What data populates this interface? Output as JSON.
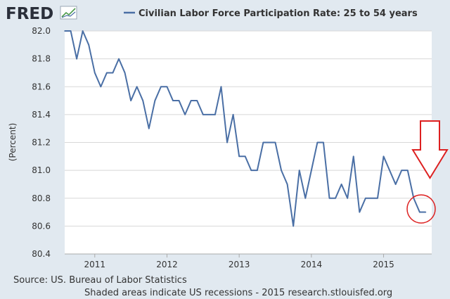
{
  "logo": {
    "text": "FRED"
  },
  "colors": {
    "series": "#4a6fa5",
    "annotation": "#dd2020",
    "plot_bg": "#ffffff",
    "page_bg": "#e1e9f0",
    "grid": "#d8d8d8"
  },
  "footer": {
    "source": "Source: US. Bureau of Labor Statistics",
    "note": "Shaded areas indicate US recessions - 2015 research.stlouisfed.org"
  },
  "chart_data": {
    "type": "line",
    "title": "",
    "ylabel": "(Percent)",
    "xlabel": "",
    "ylim": [
      80.4,
      82.0
    ],
    "y_ticks": [
      "82.0",
      "81.8",
      "81.6",
      "81.4",
      "81.2",
      "81.0",
      "80.8",
      "80.6",
      "80.4"
    ],
    "x_ticks": [
      "2011",
      "2012",
      "2013",
      "2014",
      "2015"
    ],
    "xlim": [
      "2010-08",
      "2015-09"
    ],
    "grid": true,
    "legend": "top",
    "series": [
      {
        "name": "Civilian Labor Force Participation Rate: 25 to 54 years",
        "x": [
          "2010-08",
          "2010-09",
          "2010-10",
          "2010-11",
          "2010-12",
          "2011-01",
          "2011-02",
          "2011-03",
          "2011-04",
          "2011-05",
          "2011-06",
          "2011-07",
          "2011-08",
          "2011-09",
          "2011-10",
          "2011-11",
          "2011-12",
          "2012-01",
          "2012-02",
          "2012-03",
          "2012-04",
          "2012-05",
          "2012-06",
          "2012-07",
          "2012-08",
          "2012-09",
          "2012-10",
          "2012-11",
          "2012-12",
          "2013-01",
          "2013-02",
          "2013-03",
          "2013-04",
          "2013-05",
          "2013-06",
          "2013-07",
          "2013-08",
          "2013-09",
          "2013-10",
          "2013-11",
          "2013-12",
          "2014-01",
          "2014-02",
          "2014-03",
          "2014-04",
          "2014-05",
          "2014-06",
          "2014-07",
          "2014-08",
          "2014-09",
          "2014-10",
          "2014-11",
          "2014-12",
          "2015-01",
          "2015-02",
          "2015-03",
          "2015-04",
          "2015-05",
          "2015-06",
          "2015-07",
          "2015-08"
        ],
        "values": [
          82.0,
          82.0,
          81.8,
          82.0,
          81.9,
          81.7,
          81.6,
          81.7,
          81.7,
          81.8,
          81.7,
          81.5,
          81.6,
          81.5,
          81.3,
          81.5,
          81.6,
          81.6,
          81.5,
          81.5,
          81.4,
          81.5,
          81.5,
          81.4,
          81.4,
          81.4,
          81.6,
          81.2,
          81.4,
          81.1,
          81.1,
          81.0,
          81.0,
          81.2,
          81.2,
          81.2,
          81.0,
          80.9,
          80.6,
          81.0,
          80.8,
          81.0,
          81.2,
          81.2,
          80.8,
          80.8,
          80.9,
          80.8,
          81.1,
          80.7,
          80.8,
          80.8,
          80.8,
          81.1,
          81.0,
          80.9,
          81.0,
          81.0,
          80.8,
          80.7,
          80.7
        ]
      }
    ]
  }
}
